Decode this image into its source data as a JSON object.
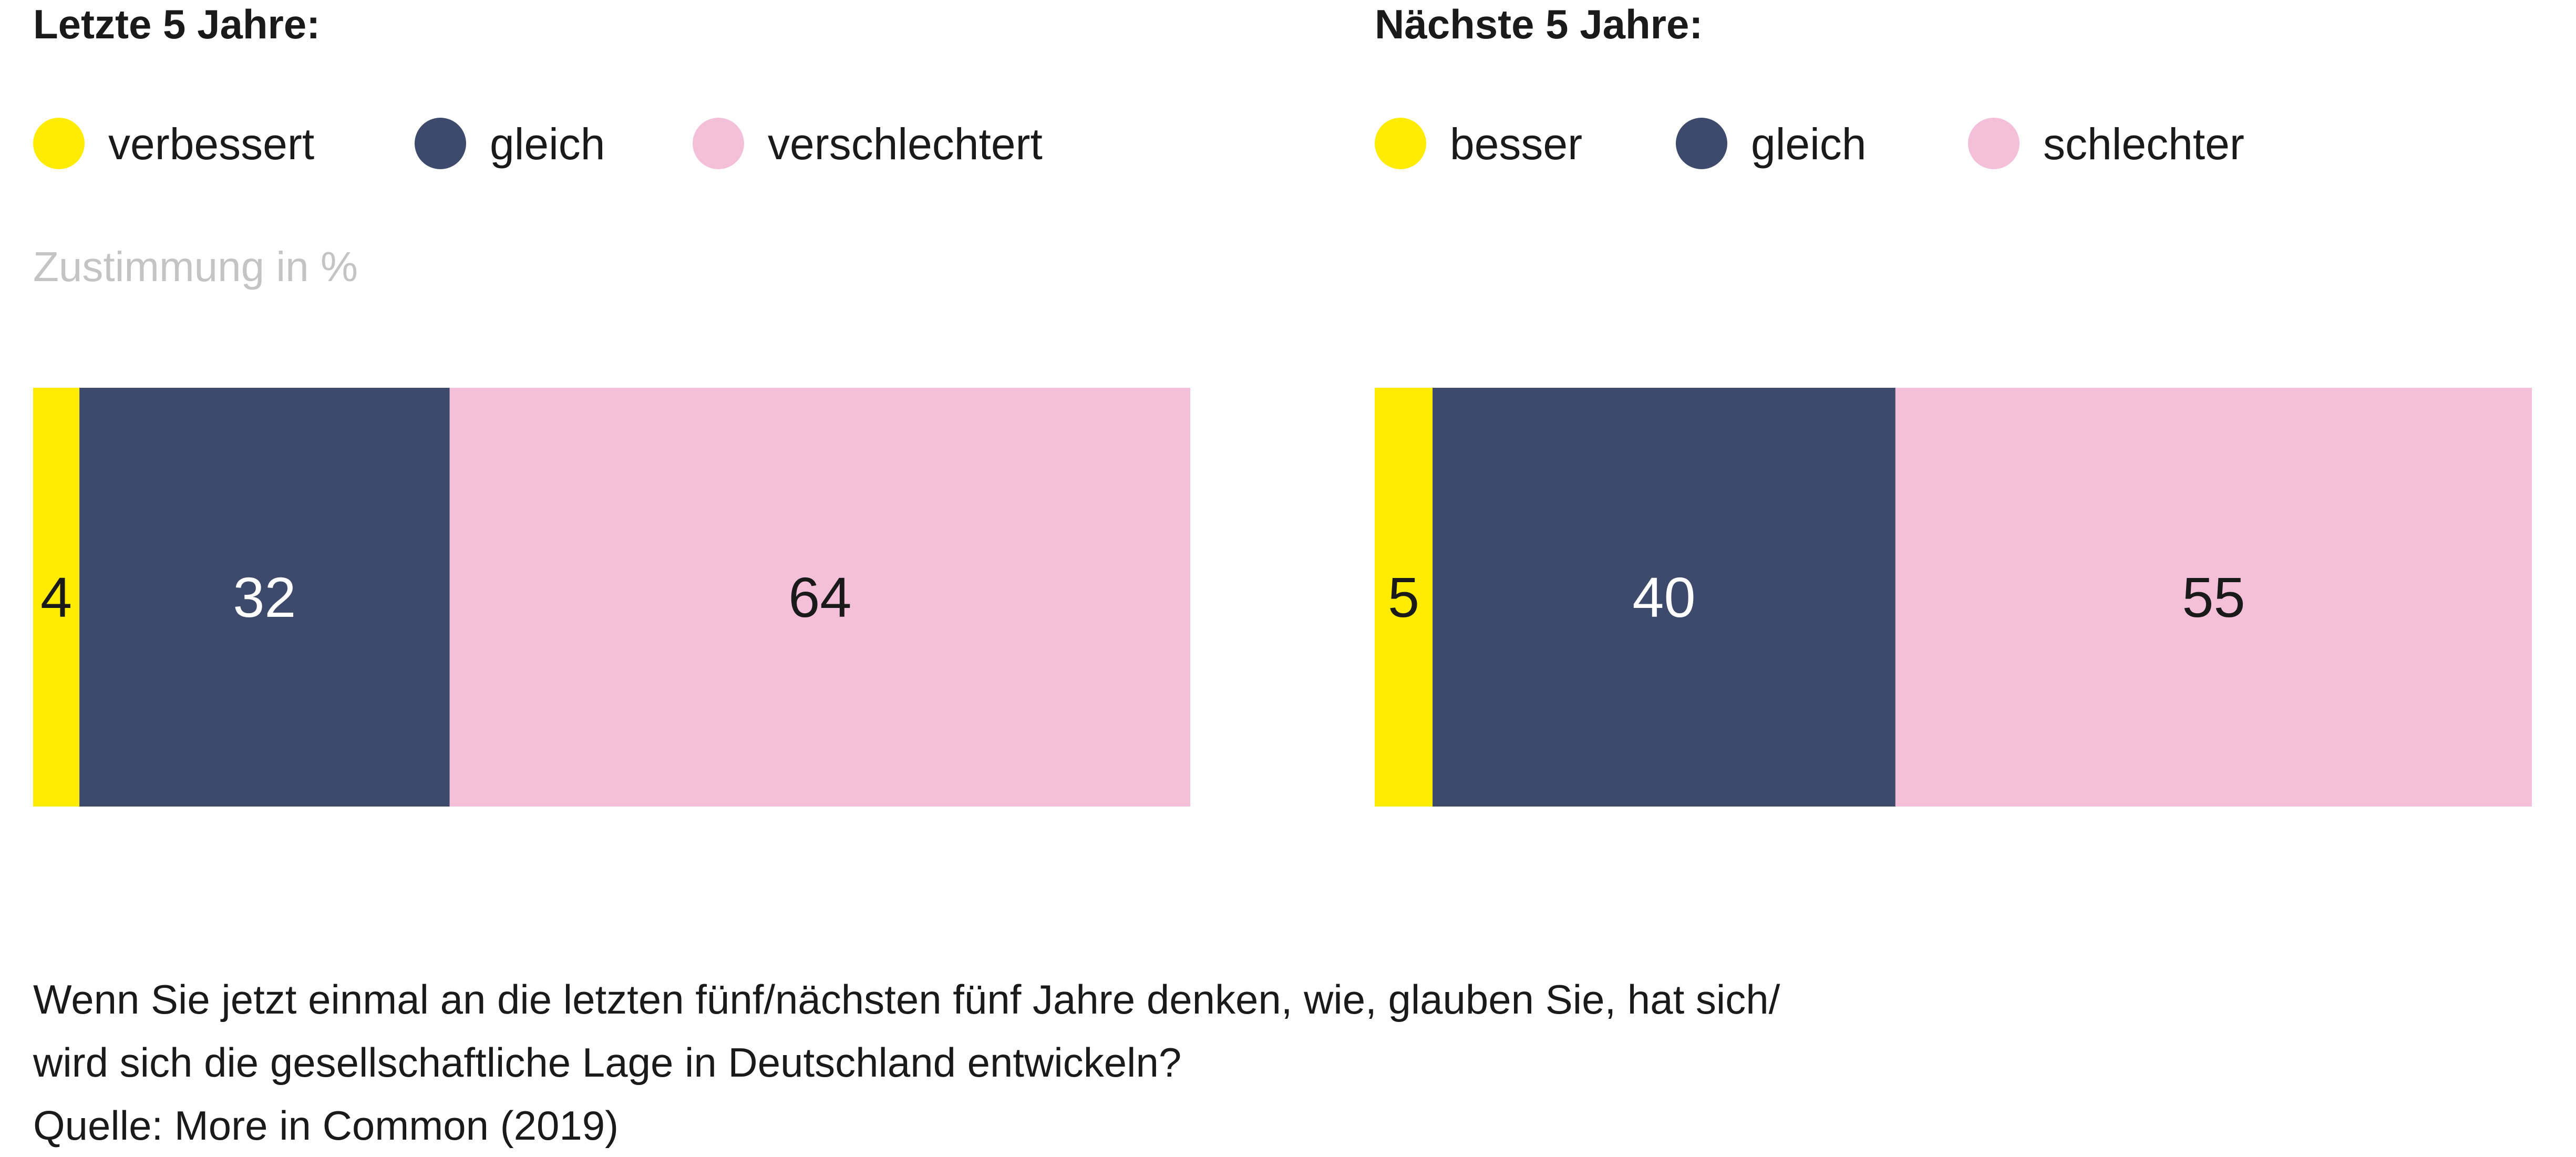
{
  "colors": {
    "yellow": "#ffec00",
    "navy": "#3d4a6b",
    "pink": "#f4bfd9",
    "text_on_navy": "#ffffff",
    "text_on_light": "#1a1a1a"
  },
  "legend_left": [
    {
      "label": "verbessert",
      "color": "#ffec00",
      "icon": "dot-icon"
    },
    {
      "label": "gleich",
      "color": "#3d4a6b",
      "icon": "dot-icon"
    },
    {
      "label": "verschlechtert",
      "color": "#f4bfd9",
      "icon": "dot-icon"
    }
  ],
  "legend_right": [
    {
      "label": "besser",
      "color": "#ffec00",
      "icon": "dot-icon"
    },
    {
      "label": "gleich",
      "color": "#3d4a6b",
      "icon": "dot-icon"
    },
    {
      "label": "schlechter",
      "color": "#f4bfd9",
      "icon": "dot-icon"
    }
  ],
  "axis_note": "Zustimmung in %",
  "caption": {
    "line1": "Wenn Sie jetzt einmal an die letzten fünf/nächsten fünf Jahre denken, wie, glauben Sie, hat sich/",
    "line2": "wird sich die gesellschaftliche Lage in Deutschland entwickeln?",
    "source": "Quelle: More in Common (2019)"
  },
  "chart_data": [
    {
      "type": "bar",
      "orientation": "horizontal-stacked-100",
      "title": "Letzte 5 Jahre:",
      "categories": [
        "verbessert",
        "gleich",
        "verschlechtert"
      ],
      "values": [
        4,
        32,
        64
      ],
      "unit": "%",
      "ylim": [
        0,
        100
      ]
    },
    {
      "type": "bar",
      "orientation": "horizontal-stacked-100",
      "title": "Nächste 5 Jahre:",
      "categories": [
        "besser",
        "gleich",
        "schlechter"
      ],
      "values": [
        5,
        40,
        55
      ],
      "unit": "%",
      "ylim": [
        0,
        100
      ]
    }
  ]
}
